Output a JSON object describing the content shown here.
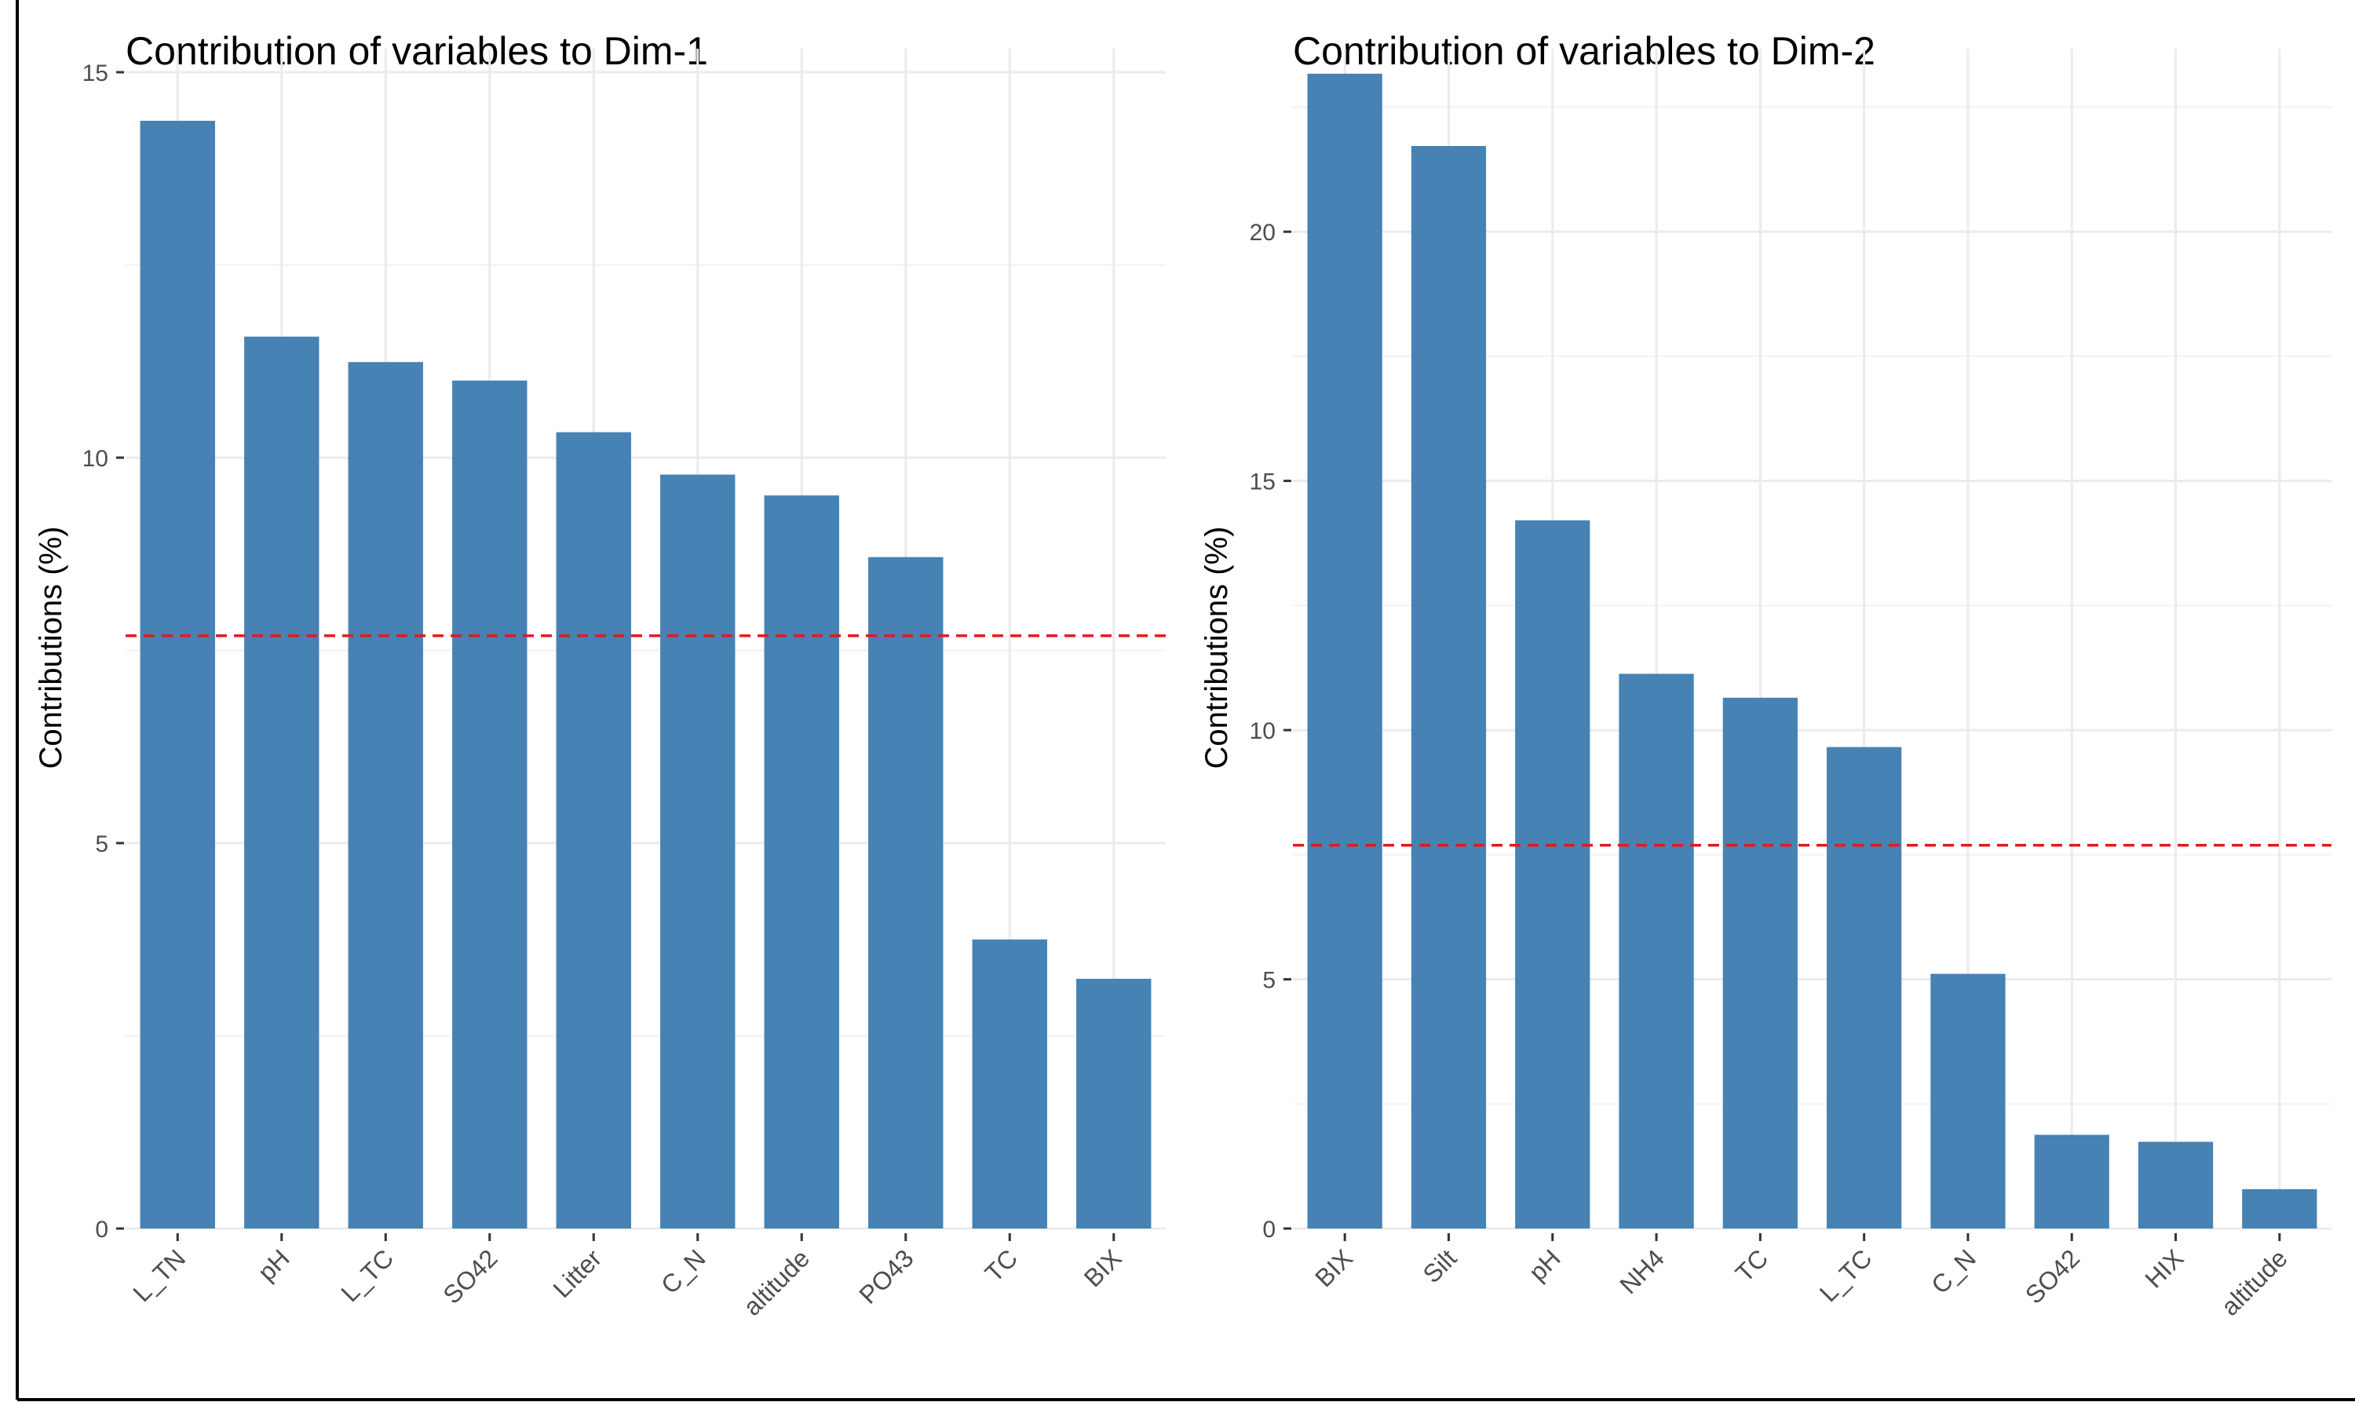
{
  "colors": {
    "bar": "#4682B4",
    "reference_line": "#E41A1C",
    "grid_major": "#EBEBEB",
    "grid_minor": "#F2F2F2",
    "text": "#000000",
    "tick_text": "#4D4D4D"
  },
  "chart_data": [
    {
      "type": "bar",
      "title": "Contribution of variables to Dim-1",
      "xlabel": "",
      "ylabel": "Contributions (%)",
      "categories": [
        "L_TN",
        "pH",
        "L_TC",
        "SO42",
        "Litter",
        "C_N",
        "altitude",
        "PO43",
        "TC",
        "BIX"
      ],
      "values": [
        14.37,
        11.57,
        11.24,
        11.0,
        10.33,
        9.78,
        9.51,
        8.71,
        3.75,
        3.24
      ],
      "reference_line": 7.69,
      "ylim": [
        0,
        15
      ],
      "yticks": [
        0,
        5,
        10,
        15
      ],
      "grid": true
    },
    {
      "type": "bar",
      "title": "Contribution of variables to Dim-2",
      "xlabel": "",
      "ylabel": "Contributions (%)",
      "categories": [
        "BIX",
        "Silt",
        "pH",
        "NH4",
        "TC",
        "L_TC",
        "C_N",
        "SO42",
        "HIX",
        "altitude"
      ],
      "values": [
        23.17,
        21.72,
        14.21,
        11.13,
        10.65,
        9.66,
        5.11,
        1.88,
        1.74,
        0.79
      ],
      "reference_line": 7.69,
      "ylim": [
        0,
        23.2
      ],
      "yticks": [
        0,
        5,
        10,
        15,
        20
      ],
      "grid": true
    }
  ]
}
